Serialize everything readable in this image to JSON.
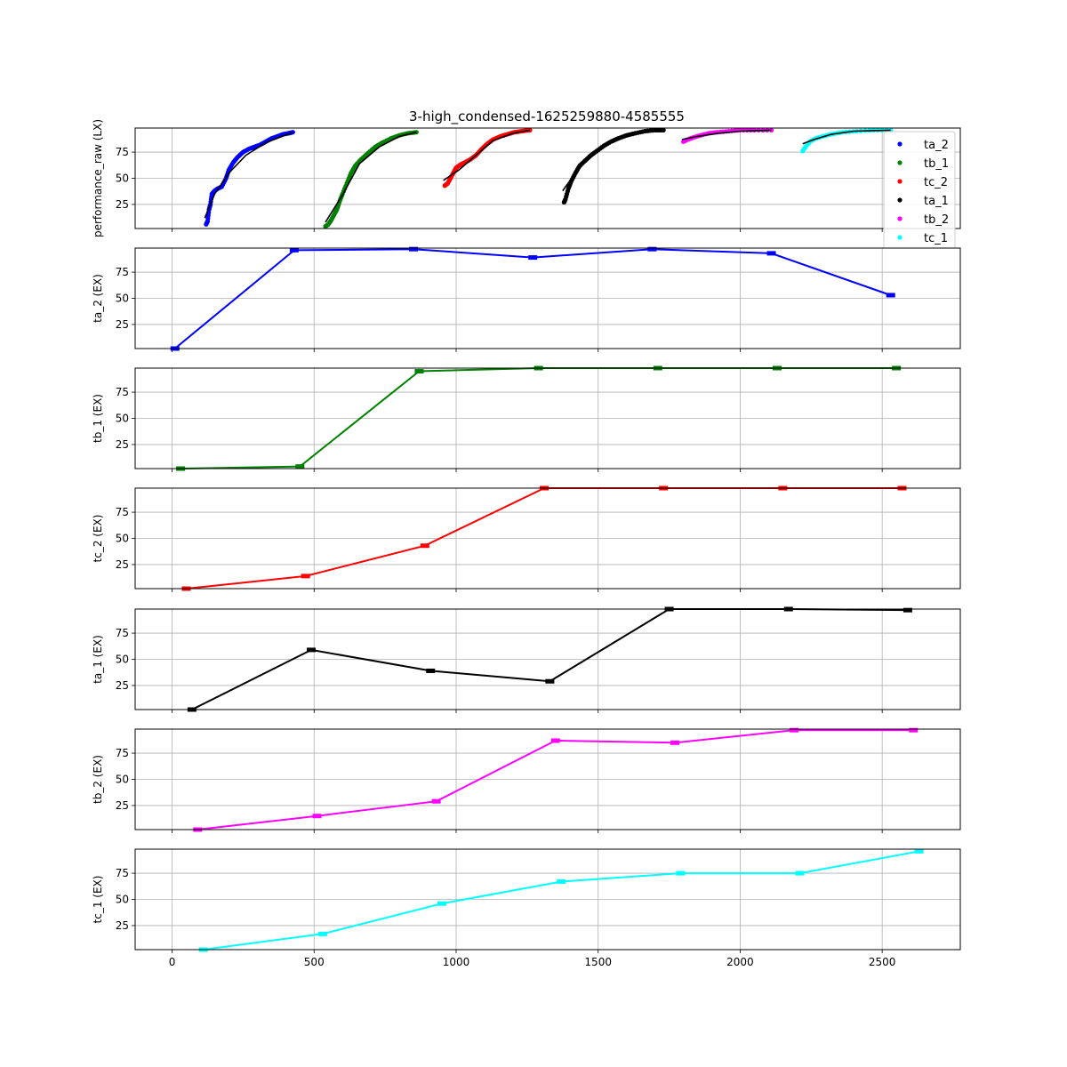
{
  "chart_data": {
    "title": "3-high_condensed-1625259880-4585555",
    "x_ticks": [
      0,
      500,
      1000,
      1500,
      2000,
      2500
    ],
    "xlim": [
      -130,
      2775
    ],
    "ylim": [
      2,
      98
    ],
    "y_ticks": [
      25,
      50,
      75
    ],
    "grid": true,
    "colors": {
      "ta_2": "#0000ff",
      "tb_1": "#008000",
      "tc_2": "#ff0000",
      "ta_1": "#000000",
      "tb_2": "#ff00ff",
      "tc_1": "#00ffff"
    },
    "top_panel": {
      "type": "scatter",
      "ylabel": "performance_raw (LX)",
      "legend": [
        "ta_2",
        "tb_1",
        "tc_2",
        "ta_1",
        "tb_2",
        "tc_1"
      ],
      "legend_position": "right",
      "segments": [
        {
          "series": "ta_2",
          "points": [
            [
              120,
              6
            ],
            [
              125,
              9
            ],
            [
              130,
              20
            ],
            [
              135,
              25
            ],
            [
              140,
              35
            ],
            [
              150,
              38
            ],
            [
              160,
              40
            ],
            [
              175,
              42
            ],
            [
              190,
              50
            ],
            [
              200,
              58
            ],
            [
              215,
              65
            ],
            [
              230,
              70
            ],
            [
              250,
              75
            ],
            [
              270,
              78
            ],
            [
              290,
              80
            ],
            [
              310,
              82
            ],
            [
              330,
              85
            ],
            [
              350,
              88
            ],
            [
              370,
              90
            ],
            [
              390,
              92
            ],
            [
              410,
              93
            ],
            [
              425,
              94
            ]
          ],
          "fit": [
            [
              115,
              12
            ],
            [
              150,
              35
            ],
            [
              200,
              55
            ],
            [
              260,
              72
            ],
            [
              330,
              84
            ],
            [
              425,
              94
            ]
          ]
        },
        {
          "series": "tb_1",
          "points": [
            [
              540,
              4
            ],
            [
              550,
              6
            ],
            [
              560,
              10
            ],
            [
              570,
              15
            ],
            [
              580,
              20
            ],
            [
              590,
              28
            ],
            [
              600,
              35
            ],
            [
              615,
              45
            ],
            [
              630,
              55
            ],
            [
              645,
              62
            ],
            [
              665,
              68
            ],
            [
              690,
              74
            ],
            [
              715,
              80
            ],
            [
              740,
              84
            ],
            [
              770,
              88
            ],
            [
              800,
              91
            ],
            [
              830,
              93
            ],
            [
              860,
              94
            ]
          ],
          "fit": [
            [
              540,
              8
            ],
            [
              600,
              34
            ],
            [
              660,
              64
            ],
            [
              730,
              80
            ],
            [
              800,
              90
            ],
            [
              860,
              94
            ]
          ]
        },
        {
          "series": "tc_2",
          "points": [
            [
              960,
              43
            ],
            [
              970,
              45
            ],
            [
              980,
              50
            ],
            [
              990,
              55
            ],
            [
              1000,
              60
            ],
            [
              1015,
              63
            ],
            [
              1030,
              65
            ],
            [
              1050,
              68
            ],
            [
              1070,
              72
            ],
            [
              1090,
              78
            ],
            [
              1110,
              83
            ],
            [
              1130,
              87
            ],
            [
              1155,
              90
            ],
            [
              1180,
              92
            ],
            [
              1205,
              94
            ],
            [
              1230,
              95
            ],
            [
              1260,
              96
            ]
          ],
          "fit": [
            [
              955,
              48
            ],
            [
              1010,
              58
            ],
            [
              1070,
              72
            ],
            [
              1130,
              86
            ],
            [
              1200,
              93
            ],
            [
              1260,
              96
            ]
          ]
        },
        {
          "series": "ta_1",
          "points": [
            [
              1380,
              27
            ],
            [
              1385,
              30
            ],
            [
              1395,
              40
            ],
            [
              1405,
              47
            ],
            [
              1420,
              55
            ],
            [
              1435,
              62
            ],
            [
              1455,
              67
            ],
            [
              1475,
              72
            ],
            [
              1495,
              76
            ],
            [
              1520,
              81
            ],
            [
              1545,
              85
            ],
            [
              1570,
              88
            ],
            [
              1600,
              91
            ],
            [
              1630,
              93
            ],
            [
              1665,
              95
            ],
            [
              1700,
              96
            ],
            [
              1730,
              96
            ]
          ],
          "fit": [
            [
              1375,
              38
            ],
            [
              1420,
              55
            ],
            [
              1480,
              73
            ],
            [
              1550,
              86
            ],
            [
              1630,
              93
            ],
            [
              1730,
              96
            ]
          ]
        },
        {
          "series": "tb_2",
          "points": [
            [
              1800,
              85
            ],
            [
              1815,
              87
            ],
            [
              1835,
              89
            ],
            [
              1860,
              91
            ],
            [
              1890,
              93
            ],
            [
              1920,
              94
            ],
            [
              1960,
              95
            ],
            [
              2000,
              96
            ],
            [
              2050,
              96
            ],
            [
              2110,
              96
            ]
          ],
          "fit": [
            [
              1795,
              87
            ],
            [
              1850,
              90
            ],
            [
              1920,
              93
            ],
            [
              2000,
              95
            ],
            [
              2110,
              96
            ]
          ]
        },
        {
          "series": "tc_1",
          "points": [
            [
              2220,
              76
            ],
            [
              2230,
              80
            ],
            [
              2245,
              85
            ],
            [
              2265,
              88
            ],
            [
              2290,
              90
            ],
            [
              2320,
              92
            ],
            [
              2360,
              94
            ],
            [
              2410,
              95
            ],
            [
              2470,
              96
            ],
            [
              2530,
              96
            ]
          ],
          "fit": [
            [
              2220,
              83
            ],
            [
              2260,
              87
            ],
            [
              2320,
              92
            ],
            [
              2400,
              95
            ],
            [
              2530,
              96
            ]
          ]
        }
      ]
    },
    "panels": [
      {
        "name": "ta_2",
        "ylabel": "ta_2 (EX)",
        "x": [
          10,
          430,
          850,
          1270,
          1690,
          2110,
          2530
        ],
        "y": [
          2,
          96,
          97,
          89,
          97,
          93,
          53
        ]
      },
      {
        "name": "tb_1",
        "ylabel": "tb_1 (EX)",
        "x": [
          30,
          450,
          870,
          1290,
          1710,
          2130,
          2550
        ],
        "y": [
          2,
          4,
          95,
          98,
          98,
          98,
          98
        ]
      },
      {
        "name": "tc_2",
        "ylabel": "tc_2 (EX)",
        "x": [
          50,
          470,
          890,
          1310,
          1730,
          2150,
          2570
        ],
        "y": [
          2,
          14,
          43,
          98,
          98,
          98,
          98
        ]
      },
      {
        "name": "ta_1",
        "ylabel": "ta_1 (EX)",
        "x": [
          70,
          490,
          910,
          1330,
          1750,
          2170,
          2590
        ],
        "y": [
          2,
          59,
          39,
          29,
          98,
          98,
          97
        ]
      },
      {
        "name": "tb_2",
        "ylabel": "tb_2 (EX)",
        "x": [
          90,
          510,
          930,
          1350,
          1770,
          2190,
          2610
        ],
        "y": [
          2,
          15,
          29,
          87,
          85,
          97,
          97
        ]
      },
      {
        "name": "tc_1",
        "ylabel": "tc_1 (EX)",
        "x": [
          110,
          530,
          950,
          1370,
          1790,
          2210,
          2630
        ],
        "y": [
          2,
          17,
          46,
          67,
          75,
          75,
          96
        ]
      }
    ]
  }
}
